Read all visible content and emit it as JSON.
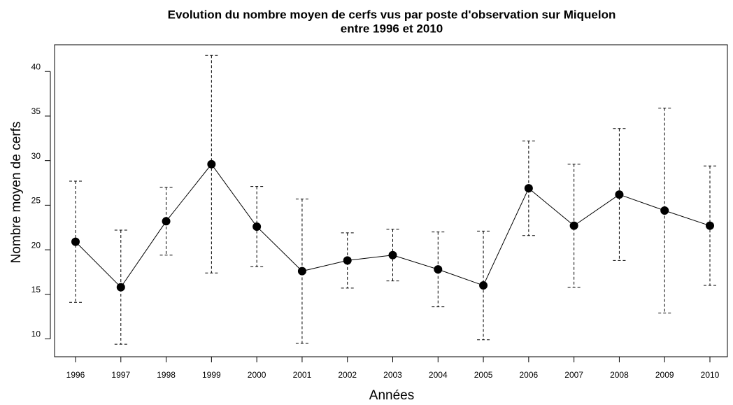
{
  "chart_data": {
    "type": "errorbar",
    "title": [
      "Evolution du nombre moyen de cerfs vus par poste d'observation sur Miquelon",
      "entre 1996 et 2010"
    ],
    "xlabel": "Années",
    "ylabel": "Nombre  moyen de cerfs",
    "categories": [
      "1996",
      "1997",
      "1998",
      "1999",
      "2000",
      "2001",
      "2002",
      "2003",
      "2004",
      "2005",
      "2006",
      "2007",
      "2008",
      "2009",
      "2010"
    ],
    "values": [
      20.9,
      15.8,
      23.2,
      29.6,
      22.6,
      17.6,
      18.8,
      19.4,
      17.8,
      16.0,
      26.9,
      22.7,
      26.2,
      24.4,
      22.7
    ],
    "errors": [
      6.8,
      6.4,
      3.8,
      12.2,
      4.5,
      8.1,
      3.1,
      2.9,
      4.2,
      6.1,
      5.3,
      6.9,
      7.4,
      11.5,
      6.7
    ],
    "color": "#000000",
    "ylim": [
      8,
      43
    ],
    "yticks": [
      10,
      15,
      20,
      25,
      30,
      35,
      40
    ]
  }
}
